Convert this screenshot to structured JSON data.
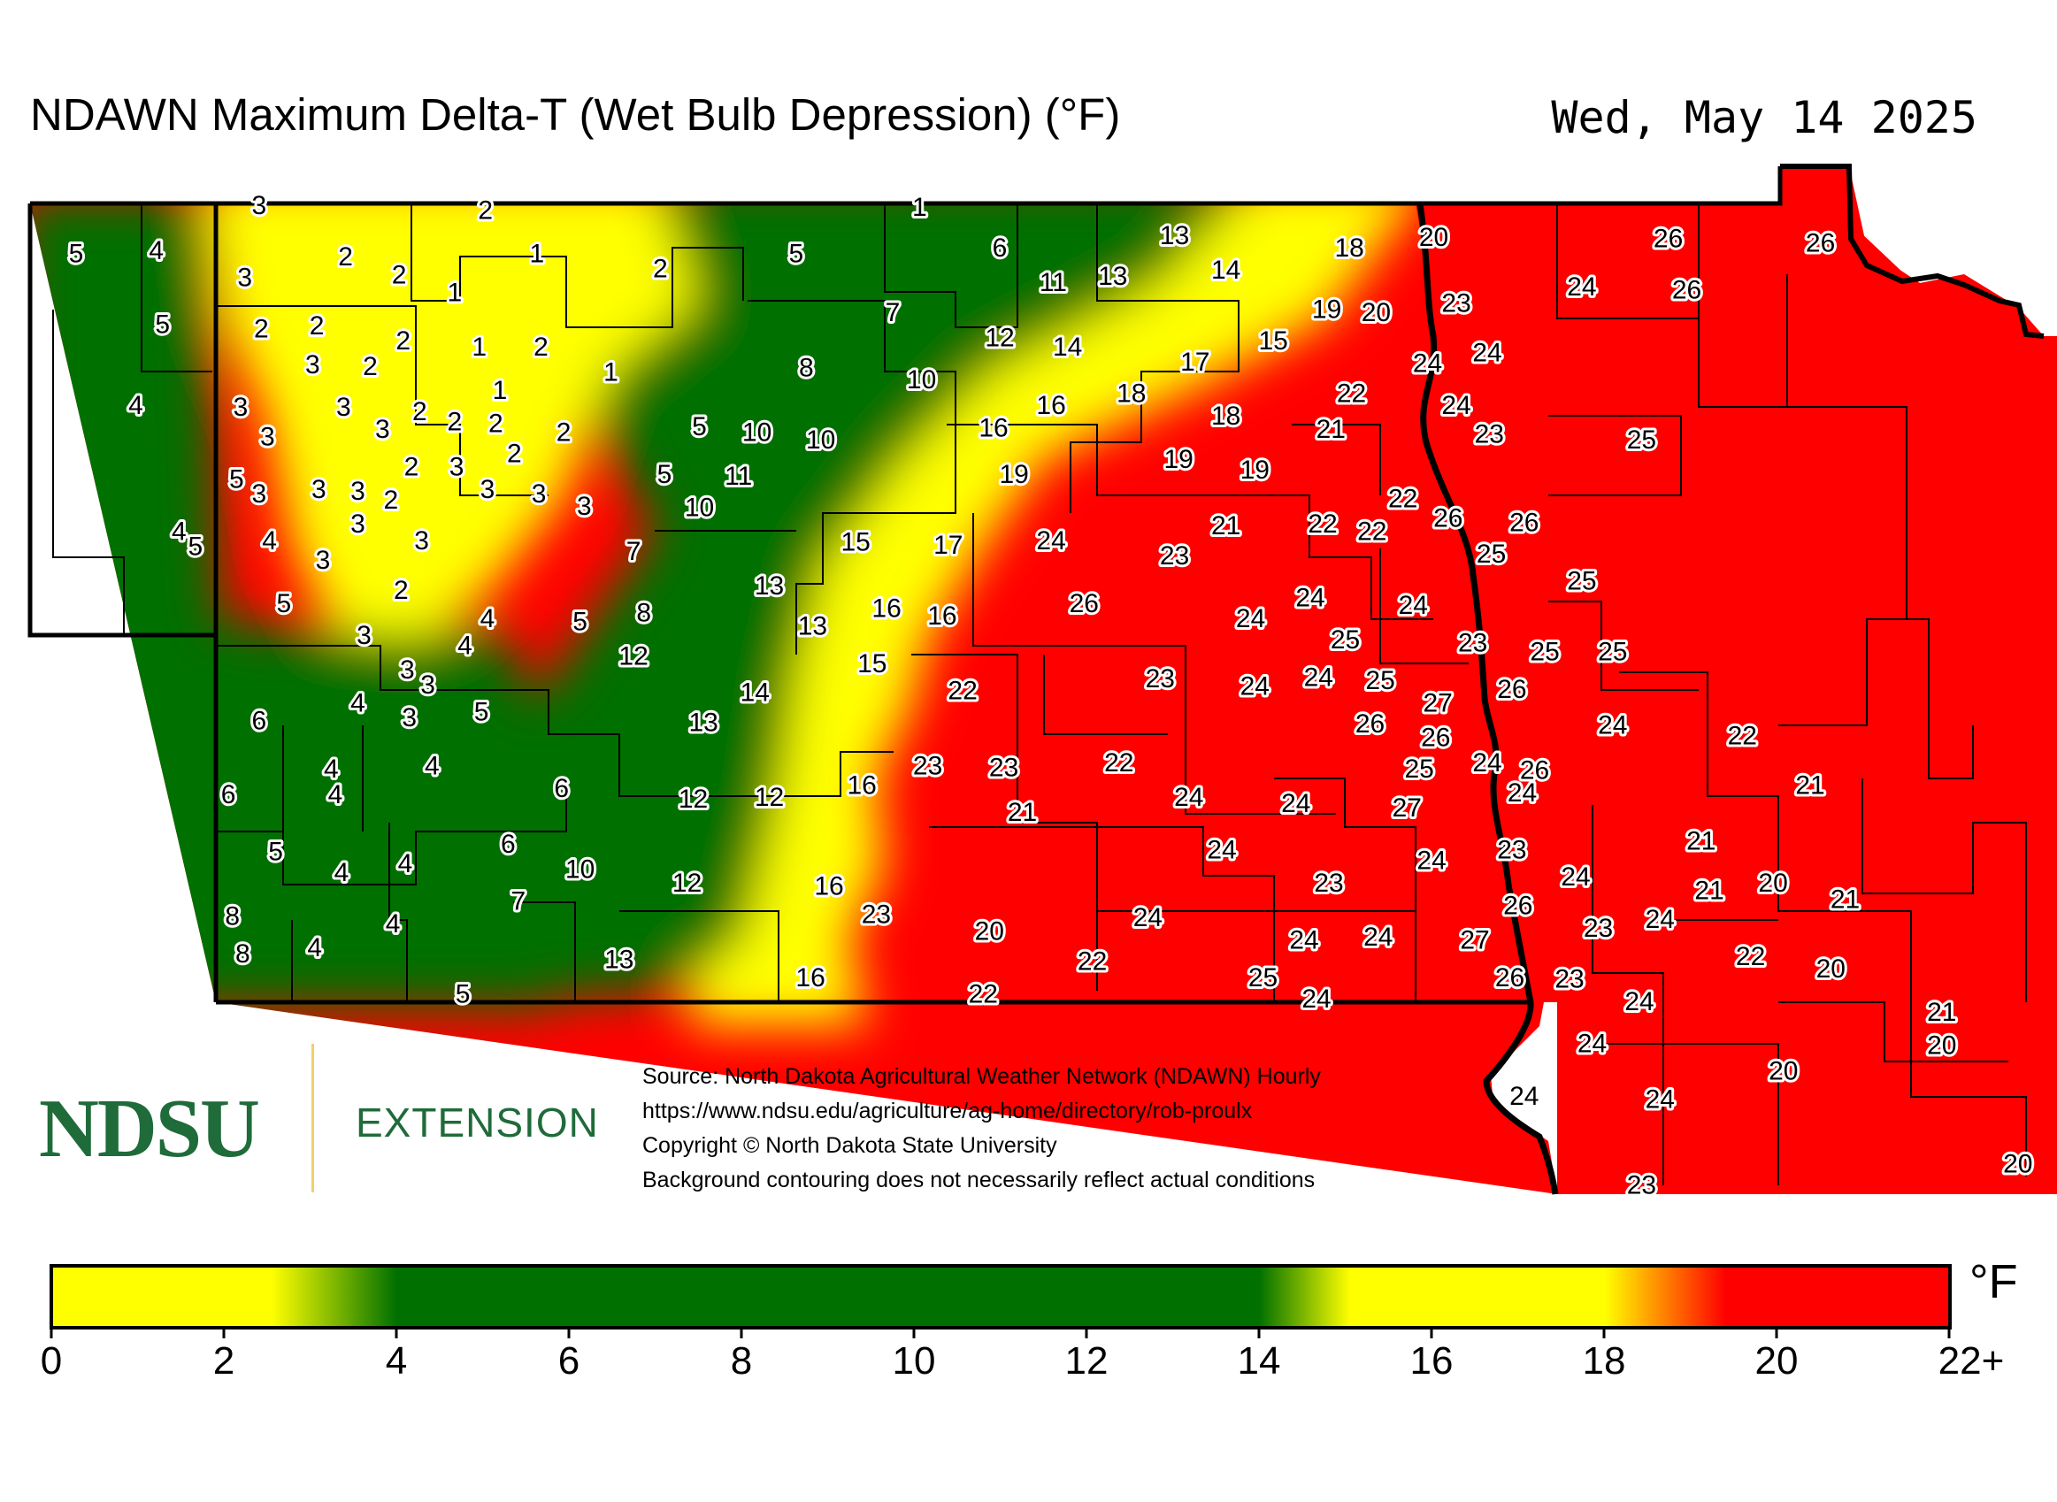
{
  "title": "NDAWN Maximum Delta-T (Wet Bulb Depression) (°F)",
  "date": "Wed, May 14 2025",
  "logo": {
    "name": "NDSU",
    "sub": "EXTENSION"
  },
  "source_lines": [
    "Source: North Dakota Agricultural Weather Network (NDAWN) Hourly",
    "https://www.ndsu.edu/agriculture/ag-home/directory/rob-proulx",
    "Copyright © North Dakota State University",
    "Background contouring does not necessarily reflect actual conditions"
  ],
  "colorbar": {
    "unit": "°F",
    "ticks": [
      "0",
      "2",
      "4",
      "6",
      "8",
      "10",
      "12",
      "14",
      "16",
      "18",
      "20",
      "22+"
    ],
    "colors": {
      "low": "#ffff00",
      "mid": "#007000",
      "high": "#ff0000"
    }
  },
  "stations": [
    {
      "v": "3",
      "xy": [
        0.126,
        0.138
      ]
    },
    {
      "v": "2",
      "xy": [
        0.236,
        0.141
      ]
    },
    {
      "v": "1",
      "xy": [
        0.447,
        0.139
      ]
    },
    {
      "v": "5",
      "xy": [
        0.037,
        0.17
      ]
    },
    {
      "v": "4",
      "xy": [
        0.076,
        0.168
      ]
    },
    {
      "v": "2",
      "xy": [
        0.168,
        0.172
      ]
    },
    {
      "v": "1",
      "xy": [
        0.261,
        0.17
      ]
    },
    {
      "v": "3",
      "xy": [
        0.119,
        0.186
      ]
    },
    {
      "v": "2",
      "xy": [
        0.194,
        0.184
      ]
    },
    {
      "v": "2",
      "xy": [
        0.321,
        0.18
      ]
    },
    {
      "v": "5",
      "xy": [
        0.387,
        0.17
      ]
    },
    {
      "v": "6",
      "xy": [
        0.486,
        0.166
      ]
    },
    {
      "v": "13",
      "xy": [
        0.571,
        0.158
      ]
    },
    {
      "v": "14",
      "xy": [
        0.596,
        0.181
      ]
    },
    {
      "v": "11",
      "xy": [
        0.512,
        0.189
      ]
    },
    {
      "v": "13",
      "xy": [
        0.541,
        0.185
      ]
    },
    {
      "v": "18",
      "xy": [
        0.656,
        0.166
      ]
    },
    {
      "v": "20",
      "xy": [
        0.697,
        0.159
      ]
    },
    {
      "v": "26",
      "xy": [
        0.811,
        0.16
      ]
    },
    {
      "v": "26",
      "xy": [
        0.885,
        0.163
      ]
    },
    {
      "v": "1",
      "xy": [
        0.221,
        0.196
      ]
    },
    {
      "v": "5",
      "xy": [
        0.079,
        0.217
      ]
    },
    {
      "v": "2",
      "xy": [
        0.127,
        0.22
      ]
    },
    {
      "v": "2",
      "xy": [
        0.154,
        0.218
      ]
    },
    {
      "v": "7",
      "xy": [
        0.434,
        0.209
      ]
    },
    {
      "v": "19",
      "xy": [
        0.645,
        0.207
      ]
    },
    {
      "v": "20",
      "xy": [
        0.669,
        0.209
      ]
    },
    {
      "v": "23",
      "xy": [
        0.708,
        0.203
      ]
    },
    {
      "v": "24",
      "xy": [
        0.769,
        0.192
      ]
    },
    {
      "v": "26",
      "xy": [
        0.82,
        0.194
      ]
    },
    {
      "v": "3",
      "xy": [
        0.152,
        0.244
      ]
    },
    {
      "v": "2",
      "xy": [
        0.18,
        0.245
      ]
    },
    {
      "v": "2",
      "xy": [
        0.196,
        0.228
      ]
    },
    {
      "v": "1",
      "xy": [
        0.233,
        0.232
      ]
    },
    {
      "v": "2",
      "xy": [
        0.263,
        0.232
      ]
    },
    {
      "v": "1",
      "xy": [
        0.297,
        0.249
      ]
    },
    {
      "v": "8",
      "xy": [
        0.392,
        0.246
      ]
    },
    {
      "v": "10",
      "xy": [
        0.448,
        0.254
      ]
    },
    {
      "v": "12",
      "xy": [
        0.486,
        0.226
      ]
    },
    {
      "v": "14",
      "xy": [
        0.519,
        0.232
      ]
    },
    {
      "v": "17",
      "xy": [
        0.581,
        0.242
      ]
    },
    {
      "v": "15",
      "xy": [
        0.619,
        0.228
      ]
    },
    {
      "v": "24",
      "xy": [
        0.694,
        0.243
      ]
    },
    {
      "v": "24",
      "xy": [
        0.723,
        0.236
      ]
    },
    {
      "v": "4",
      "xy": [
        0.066,
        0.271
      ]
    },
    {
      "v": "3",
      "xy": [
        0.117,
        0.272
      ]
    },
    {
      "v": "3",
      "xy": [
        0.167,
        0.272
      ]
    },
    {
      "v": "2",
      "xy": [
        0.204,
        0.275
      ]
    },
    {
      "v": "1",
      "xy": [
        0.243,
        0.261
      ]
    },
    {
      "v": "2",
      "xy": [
        0.221,
        0.282
      ]
    },
    {
      "v": "3",
      "xy": [
        0.186,
        0.287
      ]
    },
    {
      "v": "3",
      "xy": [
        0.13,
        0.292
      ]
    },
    {
      "v": "2",
      "xy": [
        0.241,
        0.283
      ]
    },
    {
      "v": "2",
      "xy": [
        0.274,
        0.289
      ]
    },
    {
      "v": "5",
      "xy": [
        0.34,
        0.285
      ]
    },
    {
      "v": "10",
      "xy": [
        0.368,
        0.289
      ]
    },
    {
      "v": "10",
      "xy": [
        0.399,
        0.294
      ]
    },
    {
      "v": "18",
      "xy": [
        0.55,
        0.263
      ]
    },
    {
      "v": "16",
      "xy": [
        0.511,
        0.271
      ]
    },
    {
      "v": "16",
      "xy": [
        0.483,
        0.286
      ]
    },
    {
      "v": "18",
      "xy": [
        0.596,
        0.278
      ]
    },
    {
      "v": "22",
      "xy": [
        0.657,
        0.263
      ]
    },
    {
      "v": "24",
      "xy": [
        0.708,
        0.271
      ]
    },
    {
      "v": "21",
      "xy": [
        0.647,
        0.287
      ]
    },
    {
      "v": "23",
      "xy": [
        0.724,
        0.29
      ]
    },
    {
      "v": "25",
      "xy": [
        0.798,
        0.294
      ]
    },
    {
      "v": "2",
      "xy": [
        0.2,
        0.312
      ]
    },
    {
      "v": "3",
      "xy": [
        0.222,
        0.312
      ]
    },
    {
      "v": "2",
      "xy": [
        0.25,
        0.303
      ]
    },
    {
      "v": "5",
      "xy": [
        0.115,
        0.32
      ]
    },
    {
      "v": "3",
      "xy": [
        0.126,
        0.33
      ]
    },
    {
      "v": "3",
      "xy": [
        0.155,
        0.327
      ]
    },
    {
      "v": "3",
      "xy": [
        0.174,
        0.328
      ]
    },
    {
      "v": "2",
      "xy": [
        0.19,
        0.334
      ]
    },
    {
      "v": "3",
      "xy": [
        0.237,
        0.327
      ]
    },
    {
      "v": "3",
      "xy": [
        0.262,
        0.33
      ]
    },
    {
      "v": "3",
      "xy": [
        0.284,
        0.338
      ]
    },
    {
      "v": "5",
      "xy": [
        0.323,
        0.317
      ]
    },
    {
      "v": "11",
      "xy": [
        0.359,
        0.318
      ]
    },
    {
      "v": "10",
      "xy": [
        0.34,
        0.339
      ]
    },
    {
      "v": "19",
      "xy": [
        0.493,
        0.317
      ]
    },
    {
      "v": "19",
      "xy": [
        0.573,
        0.307
      ]
    },
    {
      "v": "19",
      "xy": [
        0.61,
        0.314
      ]
    },
    {
      "v": "22",
      "xy": [
        0.682,
        0.333
      ]
    },
    {
      "v": "26",
      "xy": [
        0.704,
        0.346
      ]
    },
    {
      "v": "26",
      "xy": [
        0.741,
        0.349
      ]
    },
    {
      "v": "4",
      "xy": [
        0.087,
        0.355
      ]
    },
    {
      "v": "5",
      "xy": [
        0.095,
        0.365
      ]
    },
    {
      "v": "4",
      "xy": [
        0.131,
        0.361
      ]
    },
    {
      "v": "3",
      "xy": [
        0.174,
        0.35
      ]
    },
    {
      "v": "3",
      "xy": [
        0.205,
        0.361
      ]
    },
    {
      "v": "3",
      "xy": [
        0.157,
        0.374
      ]
    },
    {
      "v": "7",
      "xy": [
        0.308,
        0.368
      ]
    },
    {
      "v": "15",
      "xy": [
        0.416,
        0.362
      ]
    },
    {
      "v": "17",
      "xy": [
        0.461,
        0.364
      ]
    },
    {
      "v": "24",
      "xy": [
        0.511,
        0.361
      ]
    },
    {
      "v": "21",
      "xy": [
        0.596,
        0.351
      ]
    },
    {
      "v": "22",
      "xy": [
        0.643,
        0.35
      ]
    },
    {
      "v": "22",
      "xy": [
        0.667,
        0.355
      ]
    },
    {
      "v": "23",
      "xy": [
        0.571,
        0.371
      ]
    },
    {
      "v": "25",
      "xy": [
        0.725,
        0.37
      ]
    },
    {
      "v": "2",
      "xy": [
        0.195,
        0.394
      ]
    },
    {
      "v": "13",
      "xy": [
        0.374,
        0.391
      ]
    },
    {
      "v": "25",
      "xy": [
        0.769,
        0.388
      ]
    },
    {
      "v": "5",
      "xy": [
        0.138,
        0.403
      ]
    },
    {
      "v": "8",
      "xy": [
        0.313,
        0.409
      ]
    },
    {
      "v": "16",
      "xy": [
        0.431,
        0.406
      ]
    },
    {
      "v": "16",
      "xy": [
        0.458,
        0.411
      ]
    },
    {
      "v": "26",
      "xy": [
        0.527,
        0.403
      ]
    },
    {
      "v": "24",
      "xy": [
        0.637,
        0.399
      ]
    },
    {
      "v": "24",
      "xy": [
        0.687,
        0.404
      ]
    },
    {
      "v": "4",
      "xy": [
        0.237,
        0.413
      ]
    },
    {
      "v": "5",
      "xy": [
        0.282,
        0.415
      ]
    },
    {
      "v": "13",
      "xy": [
        0.395,
        0.418
      ]
    },
    {
      "v": "24",
      "xy": [
        0.608,
        0.413
      ]
    },
    {
      "v": "3",
      "xy": [
        0.177,
        0.424
      ]
    },
    {
      "v": "4",
      "xy": [
        0.226,
        0.431
      ]
    },
    {
      "v": "25",
      "xy": [
        0.654,
        0.427
      ]
    },
    {
      "v": "23",
      "xy": [
        0.716,
        0.429
      ]
    },
    {
      "v": "25",
      "xy": [
        0.751,
        0.435
      ]
    },
    {
      "v": "25",
      "xy": [
        0.784,
        0.435
      ]
    },
    {
      "v": "12",
      "xy": [
        0.308,
        0.438
      ]
    },
    {
      "v": "15",
      "xy": [
        0.424,
        0.443
      ]
    },
    {
      "v": "3",
      "xy": [
        0.198,
        0.447
      ]
    },
    {
      "v": "3",
      "xy": [
        0.208,
        0.457
      ]
    },
    {
      "v": "23",
      "xy": [
        0.564,
        0.453
      ]
    },
    {
      "v": "24",
      "xy": [
        0.61,
        0.458
      ]
    },
    {
      "v": "24",
      "xy": [
        0.641,
        0.452
      ]
    },
    {
      "v": "25",
      "xy": [
        0.671,
        0.454
      ]
    },
    {
      "v": "27",
      "xy": [
        0.699,
        0.469
      ]
    },
    {
      "v": "26",
      "xy": [
        0.735,
        0.46
      ]
    },
    {
      "v": "4",
      "xy": [
        0.174,
        0.469
      ]
    },
    {
      "v": "14",
      "xy": [
        0.367,
        0.462
      ]
    },
    {
      "v": "22",
      "xy": [
        0.468,
        0.461
      ]
    },
    {
      "v": "3",
      "xy": [
        0.199,
        0.479
      ]
    },
    {
      "v": "5",
      "xy": [
        0.234,
        0.475
      ]
    },
    {
      "v": "6",
      "xy": [
        0.126,
        0.481
      ]
    },
    {
      "v": "13",
      "xy": [
        0.342,
        0.482
      ]
    },
    {
      "v": "26",
      "xy": [
        0.666,
        0.483
      ]
    },
    {
      "v": "26",
      "xy": [
        0.698,
        0.492
      ]
    },
    {
      "v": "24",
      "xy": [
        0.784,
        0.484
      ]
    },
    {
      "v": "22",
      "xy": [
        0.847,
        0.491
      ]
    },
    {
      "v": "4",
      "xy": [
        0.21,
        0.511
      ]
    },
    {
      "v": "4",
      "xy": [
        0.161,
        0.513
      ]
    },
    {
      "v": "16",
      "xy": [
        0.419,
        0.524
      ]
    },
    {
      "v": "23",
      "xy": [
        0.451,
        0.511
      ]
    },
    {
      "v": "23",
      "xy": [
        0.488,
        0.512
      ]
    },
    {
      "v": "22",
      "xy": [
        0.544,
        0.509
      ]
    },
    {
      "v": "25",
      "xy": [
        0.69,
        0.513
      ]
    },
    {
      "v": "24",
      "xy": [
        0.723,
        0.509
      ]
    },
    {
      "v": "26",
      "xy": [
        0.746,
        0.514
      ]
    },
    {
      "v": "24",
      "xy": [
        0.74,
        0.529
      ]
    },
    {
      "v": "6",
      "xy": [
        0.111,
        0.53
      ]
    },
    {
      "v": "4",
      "xy": [
        0.163,
        0.53
      ]
    },
    {
      "v": "6",
      "xy": [
        0.273,
        0.526
      ]
    },
    {
      "v": "12",
      "xy": [
        0.337,
        0.533
      ]
    },
    {
      "v": "12",
      "xy": [
        0.374,
        0.532
      ]
    },
    {
      "v": "21",
      "xy": [
        0.497,
        0.542
      ]
    },
    {
      "v": "24",
      "xy": [
        0.578,
        0.532
      ]
    },
    {
      "v": "24",
      "xy": [
        0.63,
        0.536
      ]
    },
    {
      "v": "27",
      "xy": [
        0.684,
        0.539
      ]
    },
    {
      "v": "21",
      "xy": [
        0.88,
        0.524
      ]
    },
    {
      "v": "5",
      "xy": [
        0.134,
        0.568
      ]
    },
    {
      "v": "6",
      "xy": [
        0.247,
        0.563
      ]
    },
    {
      "v": "4",
      "xy": [
        0.166,
        0.582
      ]
    },
    {
      "v": "4",
      "xy": [
        0.197,
        0.576
      ]
    },
    {
      "v": "10",
      "xy": [
        0.282,
        0.58
      ]
    },
    {
      "v": "24",
      "xy": [
        0.594,
        0.567
      ]
    },
    {
      "v": "23",
      "xy": [
        0.735,
        0.567
      ]
    },
    {
      "v": "21",
      "xy": [
        0.827,
        0.561
      ]
    },
    {
      "v": "24",
      "xy": [
        0.696,
        0.574
      ]
    },
    {
      "v": "24",
      "xy": [
        0.766,
        0.585
      ]
    },
    {
      "v": "20",
      "xy": [
        0.862,
        0.589
      ]
    },
    {
      "v": "8",
      "xy": [
        0.113,
        0.611
      ]
    },
    {
      "v": "7",
      "xy": [
        0.252,
        0.601
      ]
    },
    {
      "v": "12",
      "xy": [
        0.334,
        0.589
      ]
    },
    {
      "v": "16",
      "xy": [
        0.403,
        0.591
      ]
    },
    {
      "v": "23",
      "xy": [
        0.646,
        0.589
      ]
    },
    {
      "v": "21",
      "xy": [
        0.831,
        0.594
      ]
    },
    {
      "v": "21",
      "xy": [
        0.897,
        0.6
      ]
    },
    {
      "v": "4",
      "xy": [
        0.191,
        0.616
      ]
    },
    {
      "v": "23",
      "xy": [
        0.426,
        0.61
      ]
    },
    {
      "v": "24",
      "xy": [
        0.558,
        0.612
      ]
    },
    {
      "v": "26",
      "xy": [
        0.738,
        0.604
      ]
    },
    {
      "v": "24",
      "xy": [
        0.807,
        0.613
      ]
    },
    {
      "v": "23",
      "xy": [
        0.777,
        0.619
      ]
    },
    {
      "v": "8",
      "xy": [
        0.118,
        0.636
      ]
    },
    {
      "v": "4",
      "xy": [
        0.153,
        0.632
      ]
    },
    {
      "v": "20",
      "xy": [
        0.481,
        0.621
      ]
    },
    {
      "v": "24",
      "xy": [
        0.634,
        0.627
      ]
    },
    {
      "v": "24",
      "xy": [
        0.67,
        0.625
      ]
    },
    {
      "v": "27",
      "xy": [
        0.717,
        0.627
      ]
    },
    {
      "v": "22",
      "xy": [
        0.851,
        0.638
      ]
    },
    {
      "v": "20",
      "xy": [
        0.89,
        0.646
      ]
    },
    {
      "v": "13",
      "xy": [
        0.301,
        0.64
      ]
    },
    {
      "v": "22",
      "xy": [
        0.531,
        0.641
      ]
    },
    {
      "v": "16",
      "xy": [
        0.394,
        0.652
      ]
    },
    {
      "v": "25",
      "xy": [
        0.614,
        0.652
      ]
    },
    {
      "v": "26",
      "xy": [
        0.734,
        0.652
      ]
    },
    {
      "v": "23",
      "xy": [
        0.763,
        0.653
      ]
    },
    {
      "v": "5",
      "xy": [
        0.225,
        0.663
      ]
    },
    {
      "v": "22",
      "xy": [
        0.478,
        0.663
      ]
    },
    {
      "v": "24",
      "xy": [
        0.64,
        0.666
      ]
    },
    {
      "v": "24",
      "xy": [
        0.797,
        0.668
      ]
    },
    {
      "v": "21",
      "xy": [
        0.944,
        0.675
      ]
    },
    {
      "v": "24",
      "xy": [
        0.774,
        0.696
      ]
    },
    {
      "v": "20",
      "xy": [
        0.944,
        0.697
      ]
    },
    {
      "v": "20",
      "xy": [
        0.867,
        0.714
      ]
    },
    {
      "v": "24",
      "xy": [
        0.741,
        0.731
      ]
    },
    {
      "v": "24",
      "xy": [
        0.807,
        0.733
      ]
    },
    {
      "v": "23",
      "xy": [
        0.798,
        0.79
      ]
    },
    {
      "v": "20",
      "xy": [
        0.981,
        0.776
      ]
    }
  ]
}
